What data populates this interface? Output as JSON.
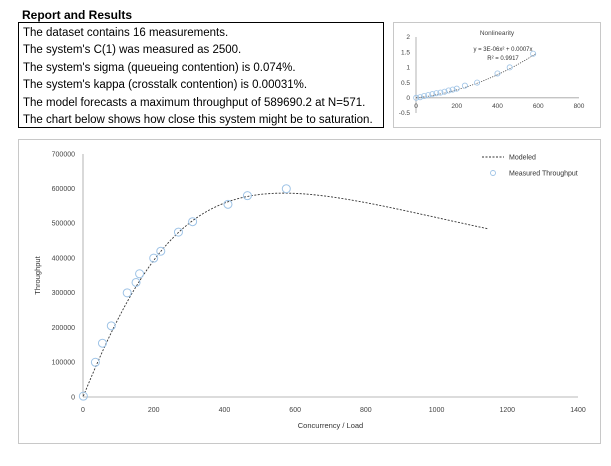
{
  "report": {
    "title": "Report and Results",
    "lines": [
      "The dataset contains 16 measurements.",
      "The system's C(1)  was measured as 2500.",
      "The system's sigma (queueing contention) is 0.074%.",
      "The system's kappa (crosstalk contention) is 0.00031%.",
      "The model forecasts a maximum throughput of 589690.2 at N=571.",
      "The chart below shows how close this system might be to saturation."
    ]
  },
  "chart_data": [
    {
      "type": "scatter",
      "title": "Nonlinearity",
      "annotations": [
        "y = 3E-06x² + 0.0007x",
        "R² = 0.9917"
      ],
      "xlim": [
        0,
        800
      ],
      "ylim": [
        -0.5,
        2
      ],
      "x_ticks": [
        "0",
        "200",
        "400",
        "600",
        "800"
      ],
      "y_ticks": [
        "-0.5",
        "0",
        "0.5",
        "1",
        "1.5",
        "2"
      ],
      "grid": false,
      "trendline": {
        "a": 3e-06,
        "b": 0.0007
      },
      "series": [
        {
          "x": [
            1,
            20,
            40,
            60,
            80,
            100,
            120,
            140,
            160,
            180,
            200,
            240,
            300,
            400,
            460,
            575
          ],
          "y": [
            0.0,
            0.02,
            0.06,
            0.09,
            0.12,
            0.15,
            0.17,
            0.2,
            0.24,
            0.27,
            0.3,
            0.4,
            0.5,
            0.8,
            1.0,
            1.45
          ]
        }
      ]
    },
    {
      "type": "line",
      "xlabel": "Concurrency / Load",
      "ylabel": "Throughput",
      "xlim": [
        0,
        1400
      ],
      "ylim": [
        0,
        700000
      ],
      "x_ticks": [
        "0",
        "200",
        "400",
        "600",
        "800",
        "1000",
        "1200",
        "1400"
      ],
      "y_ticks": [
        "0",
        "100000",
        "200000",
        "300000",
        "400000",
        "500000",
        "600000",
        "700000"
      ],
      "legend": {
        "position": "top-right",
        "entries": [
          "Modeled",
          "Measured Throughput"
        ]
      },
      "grid": false,
      "model": {
        "C1": 2500,
        "sigma": 0.00074,
        "kappa": 3.1e-06,
        "x_max": 1150
      },
      "series": [
        {
          "name": "Measured Throughput",
          "x": [
            1,
            35,
            55,
            80,
            125,
            150,
            160,
            200,
            220,
            270,
            310,
            410,
            465,
            575
          ],
          "y": [
            2500,
            100000,
            155000,
            205000,
            300000,
            330000,
            355000,
            400000,
            420000,
            475000,
            505000,
            555000,
            580000,
            600000
          ]
        }
      ]
    }
  ]
}
